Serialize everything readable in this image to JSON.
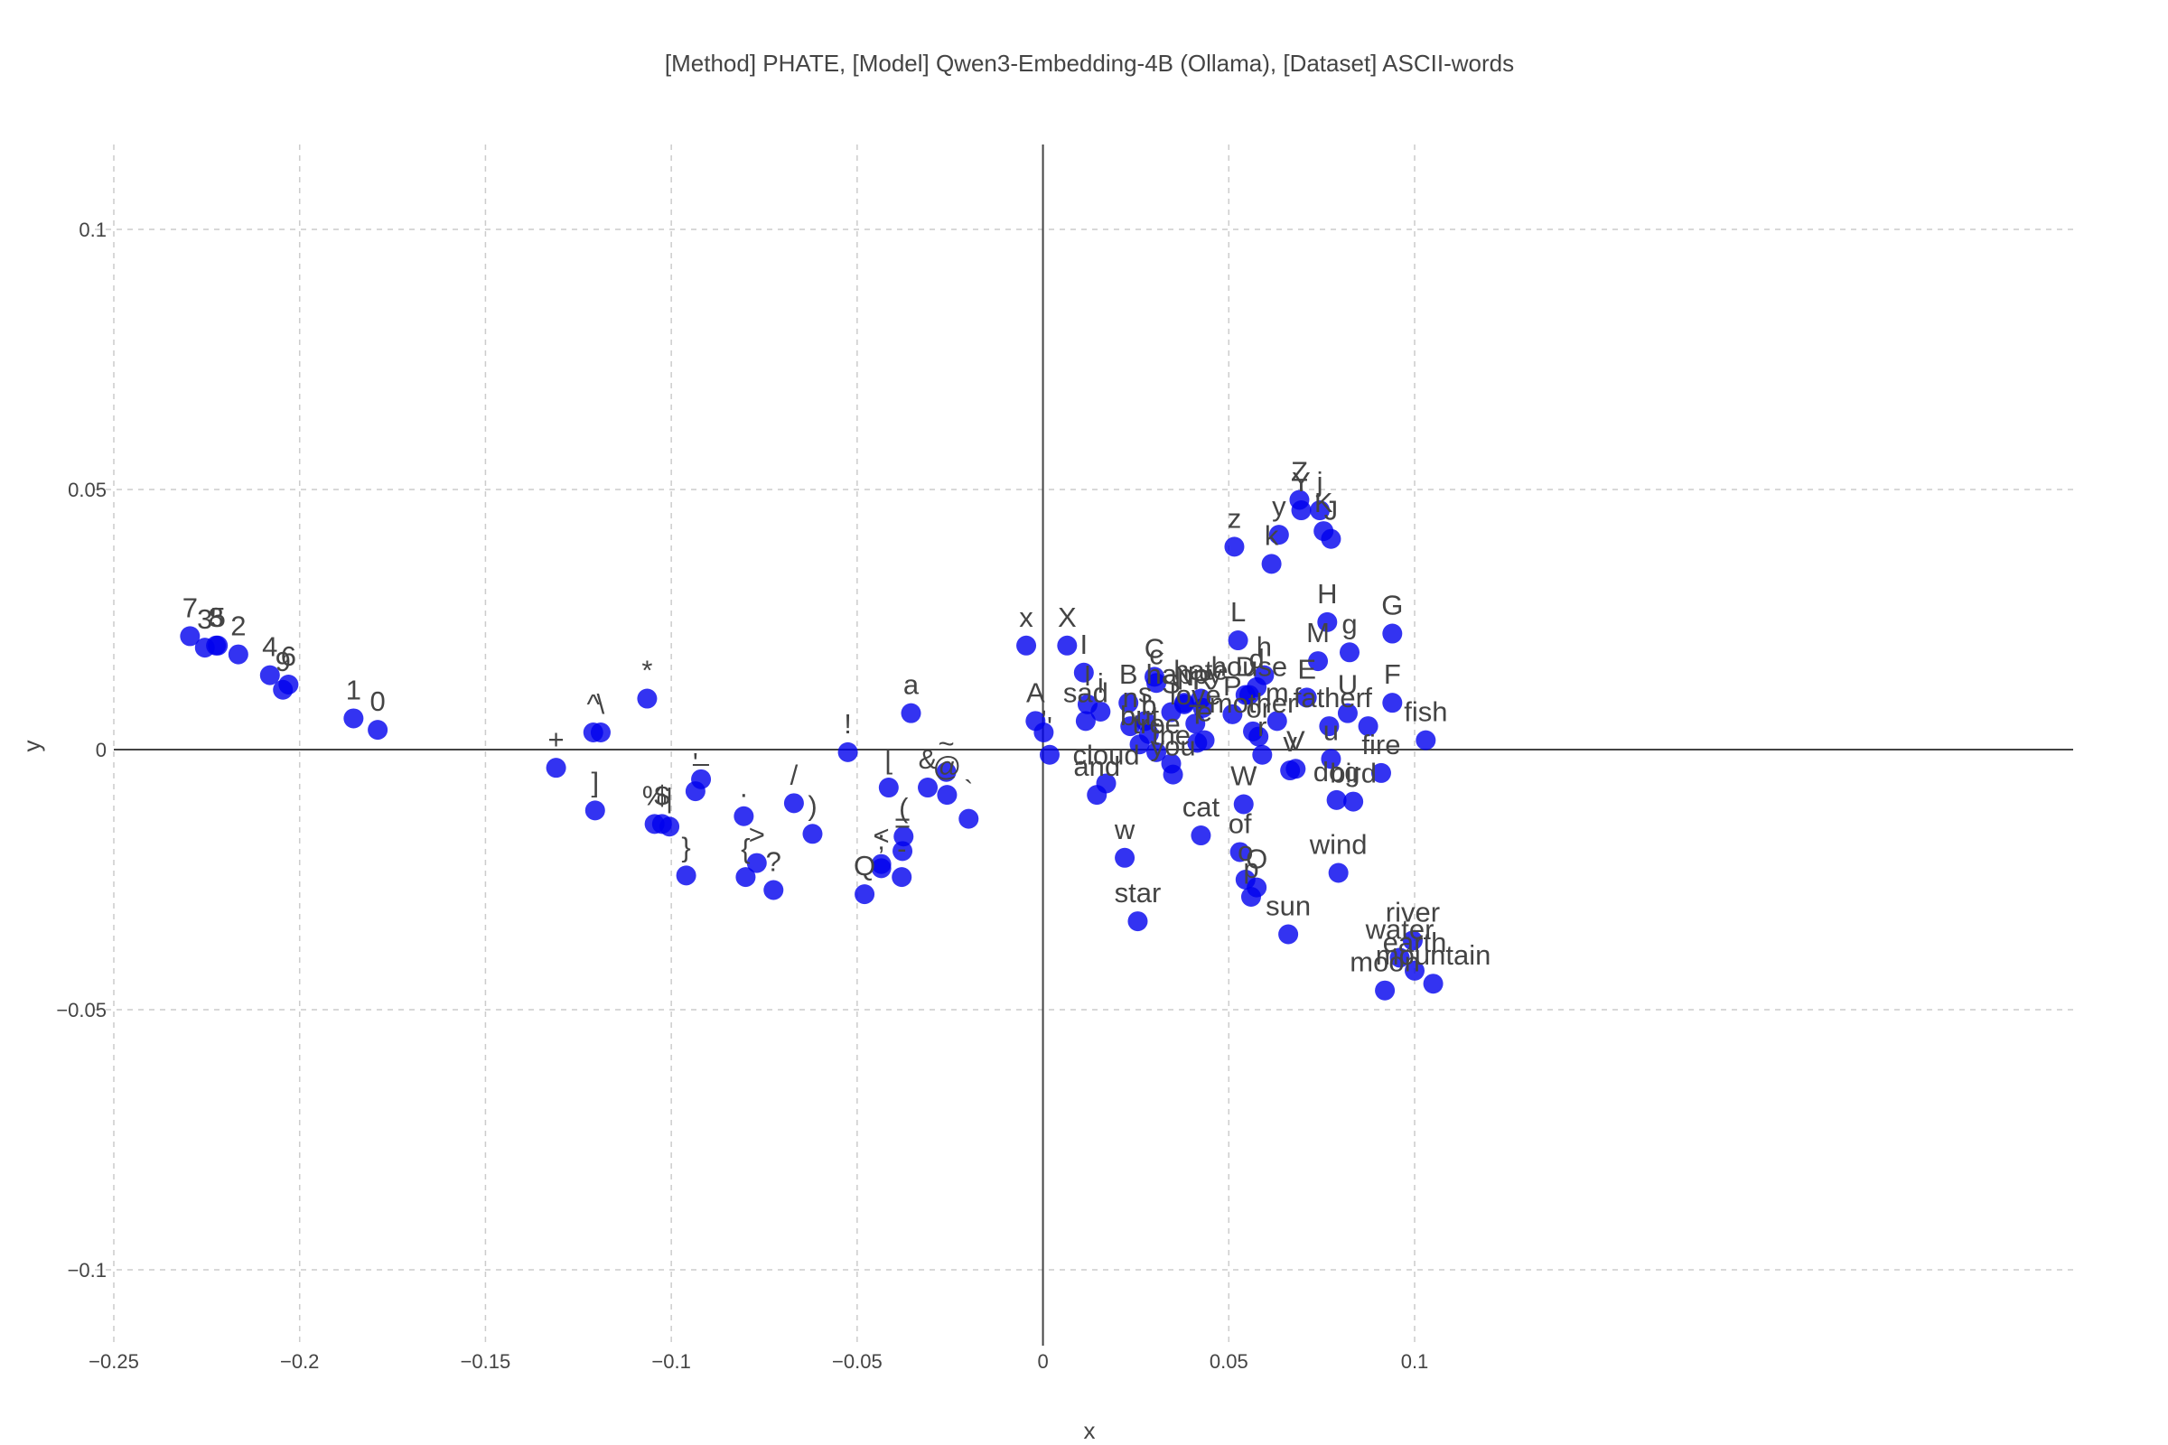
{
  "chart_data": {
    "type": "scatter",
    "title": "[Method] PHATE, [Model] Qwen3-Embedding-4B (Ollama), [Dataset] ASCII-words",
    "xlabel": "x",
    "ylabel": "y",
    "xlim": [
      -0.25,
      0.125
    ],
    "ylim": [
      -0.115,
      0.116
    ],
    "xticks": [
      -0.25,
      -0.2,
      -0.15,
      -0.1,
      -0.05,
      0,
      0.05,
      0.1
    ],
    "xtick_labels": [
      "−0.25",
      "−0.2",
      "−0.15",
      "−0.1",
      "−0.05",
      "0",
      "0.05",
      "0.1"
    ],
    "yticks": [
      0.1,
      0.05,
      0,
      -0.05,
      -0.1
    ],
    "ytick_labels": [
      "0.1",
      "0.05",
      "0",
      "−0.05",
      "−0.1"
    ],
    "grid": true,
    "marker_color": "#0000ee",
    "points": [
      {
        "label": "7",
        "x": -0.2295,
        "y": 0.0218
      },
      {
        "label": "3",
        "x": -0.2255,
        "y": 0.0196
      },
      {
        "label": "8",
        "x": -0.2225,
        "y": 0.02
      },
      {
        "label": "5",
        "x": -0.222,
        "y": 0.02
      },
      {
        "label": "2",
        "x": -0.2165,
        "y": 0.0183
      },
      {
        "label": "4",
        "x": -0.208,
        "y": 0.0143
      },
      {
        "label": "9",
        "x": -0.2045,
        "y": 0.0115
      },
      {
        "label": "6",
        "x": -0.203,
        "y": 0.0125
      },
      {
        "label": "1",
        "x": -0.1855,
        "y": 0.006
      },
      {
        "label": "0",
        "x": -0.179,
        "y": 0.0038
      },
      {
        "label": "+",
        "x": -0.131,
        "y": -0.0035
      },
      {
        "label": "^",
        "x": -0.121,
        "y": 0.0033
      },
      {
        "label": "\\",
        "x": -0.119,
        "y": 0.0033
      },
      {
        "label": "]",
        "x": -0.1205,
        "y": -0.0117
      },
      {
        "label": "*",
        "x": -0.1065,
        "y": 0.0098
      },
      {
        "label": "%",
        "x": -0.1045,
        "y": -0.0143
      },
      {
        "label": "$",
        "x": -0.1025,
        "y": -0.0143
      },
      {
        "label": "|",
        "x": -0.1005,
        "y": -0.0148
      },
      {
        "label": "}",
        "x": -0.096,
        "y": -0.0242
      },
      {
        "label": "_",
        "x": -0.092,
        "y": -0.0057
      },
      {
        "label": "'",
        "x": -0.0935,
        "y": -0.008
      },
      {
        "label": ".",
        "x": -0.0805,
        "y": -0.0128
      },
      {
        "label": "{",
        "x": -0.08,
        "y": -0.0245
      },
      {
        "label": ">",
        "x": -0.077,
        "y": -0.0218
      },
      {
        "label": "?",
        "x": -0.0725,
        "y": -0.027
      },
      {
        "label": "/",
        "x": -0.067,
        "y": -0.0103
      },
      {
        "label": ")",
        "x": -0.062,
        "y": -0.0162
      },
      {
        "label": "!",
        "x": -0.0525,
        "y": -0.0005
      },
      {
        "label": "Q",
        "x": -0.048,
        "y": -0.0278
      },
      {
        "label": "[",
        "x": -0.0415,
        "y": -0.0073
      },
      {
        "label": "<",
        "x": -0.0435,
        "y": -0.022
      },
      {
        "label": ";",
        "x": -0.0435,
        "y": -0.0228
      },
      {
        "label": "(",
        "x": -0.0375,
        "y": -0.0167
      },
      {
        "label": "=",
        "x": -0.0378,
        "y": -0.0195
      },
      {
        "label": "-",
        "x": -0.038,
        "y": -0.0245
      },
      {
        "label": "a",
        "x": -0.0355,
        "y": 0.007
      },
      {
        "label": "&",
        "x": -0.031,
        "y": -0.0073
      },
      {
        "label": "~",
        "x": -0.026,
        "y": -0.0043
      },
      {
        "label": "@",
        "x": -0.0258,
        "y": -0.0087
      },
      {
        "label": "`",
        "x": -0.02,
        "y": -0.0133
      },
      {
        "label": "x",
        "x": -0.0045,
        "y": 0.02
      },
      {
        "label": "A",
        "x": -0.002,
        "y": 0.0055
      },
      {
        "label": ",",
        "x": 0.0002,
        "y": 0.0033
      },
      {
        "label": "'",
        "x": 0.0018,
        "y": -0.001
      },
      {
        "label": "X",
        "x": 0.0065,
        "y": 0.02
      },
      {
        "label": "I",
        "x": 0.011,
        "y": 0.0148
      },
      {
        "label": "sad",
        "x": 0.0115,
        "y": 0.0055
      },
      {
        "label": "l",
        "x": 0.012,
        "y": 0.0087
      },
      {
        "label": "i",
        "x": 0.0155,
        "y": 0.0073
      },
      {
        "label": "and",
        "x": 0.0145,
        "y": -0.0087
      },
      {
        "label": "cloud",
        "x": 0.017,
        "y": -0.0065
      },
      {
        "label": "w",
        "x": 0.022,
        "y": -0.0208
      },
      {
        "label": "B",
        "x": 0.023,
        "y": 0.009
      },
      {
        "label": "n",
        "x": 0.0235,
        "y": 0.0045
      },
      {
        "label": "but",
        "x": 0.026,
        "y": 0.001
      },
      {
        "label": "s",
        "x": 0.0275,
        "y": 0.0055
      },
      {
        "label": "b",
        "x": 0.0285,
        "y": 0.003
      },
      {
        "label": "C",
        "x": 0.03,
        "y": 0.014
      },
      {
        "label": "c",
        "x": 0.0305,
        "y": 0.0128
      },
      {
        "label": "tree",
        "x": 0.0305,
        "y": -0.0005
      },
      {
        "label": "the",
        "x": 0.0345,
        "y": -0.0027
      },
      {
        "label": "S",
        "x": 0.0345,
        "y": 0.0072
      },
      {
        "label": "star",
        "x": 0.0255,
        "y": -0.033
      },
      {
        "label": "you",
        "x": 0.035,
        "y": -0.0048
      },
      {
        "label": "happy",
        "x": 0.038,
        "y": 0.009
      },
      {
        "label": "N",
        "x": 0.038,
        "y": 0.0087
      },
      {
        "label": "love",
        "x": 0.041,
        "y": 0.005
      },
      {
        "label": "hate",
        "x": 0.0425,
        "y": 0.0098
      },
      {
        "label": "R",
        "x": 0.043,
        "y": 0.008
      },
      {
        "label": "T",
        "x": 0.0415,
        "y": 0.0013
      },
      {
        "label": "e",
        "x": 0.0435,
        "y": 0.0018
      },
      {
        "label": "cat",
        "x": 0.0425,
        "y": -0.0165
      },
      {
        "label": "z",
        "x": 0.0515,
        "y": 0.039
      },
      {
        "label": "L",
        "x": 0.0525,
        "y": 0.021
      },
      {
        "label": "P",
        "x": 0.051,
        "y": 0.0068
      },
      {
        "label": "house",
        "x": 0.0555,
        "y": 0.0105
      },
      {
        "label": "D",
        "x": 0.0545,
        "y": 0.0105
      },
      {
        "label": "h",
        "x": 0.0595,
        "y": 0.0143
      },
      {
        "label": "d",
        "x": 0.0575,
        "y": 0.012
      },
      {
        "label": "mother",
        "x": 0.0565,
        "y": 0.0035
      },
      {
        "label": "m",
        "x": 0.063,
        "y": 0.0055
      },
      {
        "label": "or",
        "x": 0.058,
        "y": 0.0025
      },
      {
        "label": "r",
        "x": 0.059,
        "y": -0.001
      },
      {
        "label": "W",
        "x": 0.054,
        "y": -0.0105
      },
      {
        "label": "of",
        "x": 0.053,
        "y": -0.0197
      },
      {
        "label": "o",
        "x": 0.0545,
        "y": -0.025
      },
      {
        "label": "p",
        "x": 0.056,
        "y": -0.0283
      },
      {
        "label": "O",
        "x": 0.0575,
        "y": -0.0265
      },
      {
        "label": "k",
        "x": 0.0615,
        "y": 0.0357
      },
      {
        "label": "y",
        "x": 0.0635,
        "y": 0.0413
      },
      {
        "label": "v",
        "x": 0.0665,
        "y": -0.004
      },
      {
        "label": "V",
        "x": 0.068,
        "y": -0.0037
      },
      {
        "label": "sun",
        "x": 0.066,
        "y": -0.0355
      },
      {
        "label": "Z",
        "x": 0.069,
        "y": 0.048
      },
      {
        "label": "Y",
        "x": 0.0695,
        "y": 0.046
      },
      {
        "label": "E",
        "x": 0.071,
        "y": 0.01
      },
      {
        "label": "M",
        "x": 0.074,
        "y": 0.017
      },
      {
        "label": "j",
        "x": 0.0745,
        "y": 0.046
      },
      {
        "label": "K",
        "x": 0.0755,
        "y": 0.042
      },
      {
        "label": "J",
        "x": 0.0775,
        "y": 0.0405
      },
      {
        "label": "H",
        "x": 0.0765,
        "y": 0.0245
      },
      {
        "label": "father",
        "x": 0.077,
        "y": 0.0045
      },
      {
        "label": "u",
        "x": 0.0775,
        "y": -0.0018
      },
      {
        "label": "dog",
        "x": 0.079,
        "y": -0.0097
      },
      {
        "label": "wind",
        "x": 0.0795,
        "y": -0.0237
      },
      {
        "label": "g",
        "x": 0.0825,
        "y": 0.0187
      },
      {
        "label": "U",
        "x": 0.082,
        "y": 0.007
      },
      {
        "label": "bird",
        "x": 0.0835,
        "y": -0.01
      },
      {
        "label": "f",
        "x": 0.0875,
        "y": 0.0045
      },
      {
        "label": "fire",
        "x": 0.091,
        "y": -0.0045
      },
      {
        "label": "G",
        "x": 0.094,
        "y": 0.0223
      },
      {
        "label": "F",
        "x": 0.094,
        "y": 0.009
      },
      {
        "label": "fish",
        "x": 0.103,
        "y": 0.0018
      },
      {
        "label": "moon",
        "x": 0.092,
        "y": -0.0463
      },
      {
        "label": "water",
        "x": 0.096,
        "y": -0.04
      },
      {
        "label": "river",
        "x": 0.0995,
        "y": -0.0367
      },
      {
        "label": "earth",
        "x": 0.1,
        "y": -0.0425
      },
      {
        "label": "mountain",
        "x": 0.105,
        "y": -0.045
      }
    ]
  }
}
